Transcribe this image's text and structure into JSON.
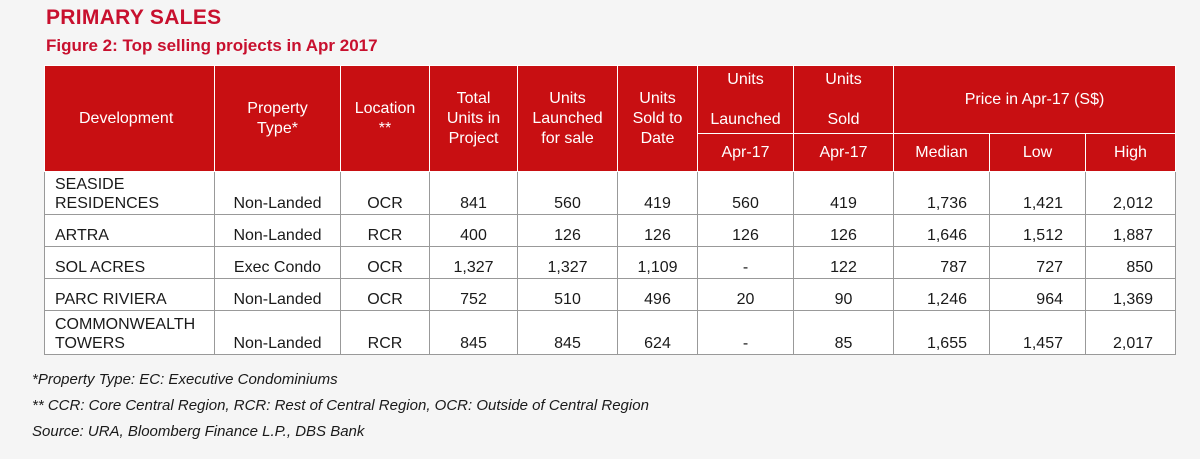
{
  "header": {
    "title": "PRIMARY SALES",
    "subtitle": "Figure 2: Top selling projects in Apr 2017"
  },
  "columns": {
    "development": "Development",
    "property_type": "Property\nType*",
    "location": "Location\n**",
    "total_units": "Total\nUnits in\nProject",
    "units_launched": "Units\nLaunched\nfor sale",
    "units_sold_to_date": "Units\nSold to\nDate",
    "units_launched_top": "Units\n\nLaunched",
    "units_launched_sub": "Apr-17",
    "units_sold_top": "Units\n\nSold",
    "units_sold_sub": "Apr-17",
    "price_group": "Price in Apr-17 (S$)",
    "median": "Median",
    "low": "Low",
    "high": "High"
  },
  "rows": [
    {
      "development": "SEASIDE\nRESIDENCES",
      "type": "Non-Landed",
      "location": "OCR",
      "total": "841",
      "launched": "560",
      "sold_to_date": "419",
      "launched_apr": "560",
      "sold_apr": "419",
      "median": "1,736",
      "low": "1,421",
      "high": "2,012"
    },
    {
      "development": "ARTRA",
      "type": "Non-Landed",
      "location": "RCR",
      "total": "400",
      "launched": "126",
      "sold_to_date": "126",
      "launched_apr": "126",
      "sold_apr": "126",
      "median": "1,646",
      "low": "1,512",
      "high": "1,887"
    },
    {
      "development": "SOL ACRES",
      "type": "Exec Condo",
      "location": "OCR",
      "total": "1,327",
      "launched": "1,327",
      "sold_to_date": "1,109",
      "launched_apr": "-",
      "sold_apr": "122",
      "median": "787",
      "low": "727",
      "high": "850"
    },
    {
      "development": "PARC RIVIERA",
      "type": "Non-Landed",
      "location": "OCR",
      "total": "752",
      "launched": "510",
      "sold_to_date": "496",
      "launched_apr": "20",
      "sold_apr": "90",
      "median": "1,246",
      "low": "964",
      "high": "1,369"
    },
    {
      "development": "COMMONWEALTH\nTOWERS",
      "type": "Non-Landed",
      "location": "RCR",
      "total": "845",
      "launched": "845",
      "sold_to_date": "624",
      "launched_apr": "-",
      "sold_apr": "85",
      "median": "1,655",
      "low": "1,457",
      "high": "2,017"
    }
  ],
  "notes": [
    "*Property Type: EC: Executive Condominiums",
    "** CCR: Core Central Region, RCR: Rest of Central Region, OCR: Outside of Central Region",
    "Source: URA, Bloomberg Finance L.P., DBS Bank"
  ],
  "colors": {
    "accent": "#c8102e",
    "header_bg": "#c80f12",
    "header_text": "#ffffff",
    "background": "#f5f5f5"
  }
}
